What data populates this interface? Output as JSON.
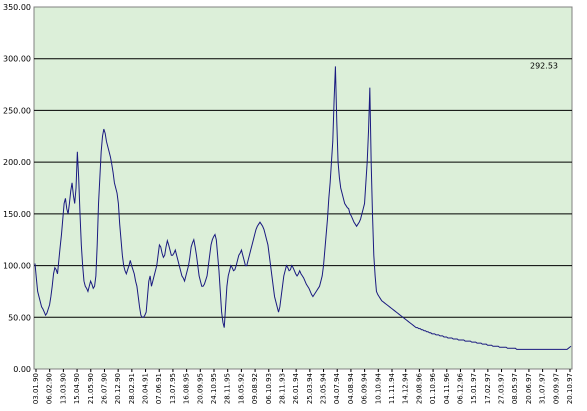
{
  "chart_data": {
    "type": "line",
    "title": "",
    "xlabel": "",
    "ylabel": "",
    "ylim": [
      0,
      350
    ],
    "yticks": [
      "0.00",
      "50.00",
      "100.00",
      "150.00",
      "200.00",
      "250.00",
      "300.00",
      "350.00"
    ],
    "grid": true,
    "legend": "none",
    "colors": {
      "plot_background": "#dcefd9",
      "line": "#1a1a80",
      "grid": "#000000"
    },
    "x_tick_labels": [
      "03.01.90",
      "06.02.90",
      "13.03.90",
      "15.04.90",
      "21.05.90",
      "26.07.90",
      "20.12.90",
      "28.02.91",
      "20.04.91",
      "07.06.91",
      "13.07.95",
      "16.08.95",
      "20.09.95",
      "24.10.95",
      "28.11.95",
      "18.05.92",
      "09.08.92",
      "06.10.93",
      "28.11.93",
      "26.01.94",
      "25.03.94",
      "23.05.94",
      "04.07.94",
      "04.08.94",
      "06.09.94",
      "10.10.94",
      "11.11.94",
      "14.12.94",
      "29.08.96",
      "01.10.96",
      "04.11.96",
      "06.12.96",
      "15.01.97",
      "17.02.97",
      "27.03.97",
      "08.05.97",
      "20.06.97",
      "31.07.97",
      "09.09.97",
      "20.10.97"
    ],
    "annotation": {
      "text": "292.53",
      "value": 292.53,
      "index": 371
    },
    "series": [
      {
        "values": [
          102,
          88,
          75,
          70,
          65,
          60,
          58,
          55,
          52,
          54,
          58,
          62,
          70,
          80,
          92,
          98,
          96,
          92,
          105,
          118,
          130,
          145,
          160,
          165,
          155,
          150,
          160,
          172,
          180,
          168,
          160,
          175,
          210,
          185,
          150,
          120,
          100,
          85,
          80,
          78,
          75,
          80,
          85,
          82,
          78,
          80,
          90,
          120,
          160,
          185,
          210,
          225,
          232,
          228,
          220,
          215,
          210,
          205,
          198,
          190,
          180,
          175,
          170,
          160,
          140,
          125,
          110,
          100,
          95,
          92,
          96,
          100,
          105,
          100,
          96,
          92,
          85,
          80,
          70,
          60,
          52,
          50,
          50,
          52,
          55,
          70,
          85,
          90,
          80,
          85,
          90,
          95,
          100,
          110,
          120,
          118,
          112,
          108,
          110,
          118,
          124,
          120,
          115,
          110,
          110,
          112,
          115,
          110,
          105,
          100,
          95,
          90,
          88,
          85,
          90,
          95,
          100,
          108,
          118,
          122,
          125,
          118,
          110,
          100,
          90,
          85,
          80,
          80,
          82,
          86,
          90,
          100,
          110,
          120,
          125,
          128,
          130,
          125,
          110,
          95,
          75,
          55,
          45,
          40,
          60,
          80,
          90,
          95,
          100,
          98,
          95,
          96,
          100,
          105,
          110,
          112,
          115,
          110,
          105,
          100,
          100,
          105,
          110,
          115,
          120,
          125,
          130,
          135,
          138,
          140,
          142,
          140,
          138,
          135,
          130,
          125,
          120,
          110,
          100,
          90,
          80,
          70,
          65,
          60,
          55,
          60,
          70,
          80,
          90,
          95,
          100,
          98,
          95,
          96,
          100,
          98,
          95,
          92,
          90,
          92,
          95,
          92,
          90,
          88,
          85,
          82,
          80,
          78,
          75,
          72,
          70,
          72,
          74,
          76,
          78,
          80,
          85,
          90,
          100,
          115,
          130,
          145,
          165,
          180,
          200,
          220,
          260,
          292.53,
          240,
          200,
          185,
          175,
          170,
          165,
          160,
          158,
          156,
          155,
          150,
          148,
          145,
          142,
          140,
          138,
          140,
          142,
          145,
          150,
          155,
          160,
          180,
          200,
          230,
          272,
          200,
          150,
          110,
          90,
          75,
          72,
          70,
          68,
          66,
          65,
          64,
          63,
          62,
          61,
          60,
          59,
          58,
          57,
          56,
          55,
          54,
          53,
          52,
          51,
          50,
          49,
          48,
          47,
          46,
          45,
          44,
          43,
          42,
          41,
          40,
          40,
          39,
          39,
          38,
          38,
          37,
          37,
          36,
          36,
          35,
          35,
          34,
          34,
          34,
          33,
          33,
          33,
          32,
          32,
          32,
          31,
          31,
          31,
          30,
          30,
          30,
          30,
          29,
          29,
          29,
          29,
          28,
          28,
          28,
          28,
          28,
          27,
          27,
          27,
          27,
          27,
          26,
          26,
          26,
          26,
          25,
          25,
          25,
          25,
          24,
          24,
          24,
          24,
          23,
          23,
          23,
          23,
          22,
          22,
          22,
          22,
          22,
          21,
          21,
          21,
          21,
          21,
          21,
          20,
          20,
          20,
          20,
          20,
          20,
          20,
          19,
          19,
          19,
          19,
          19,
          19,
          19,
          19,
          19,
          19,
          19,
          19,
          19,
          19,
          19,
          19,
          19,
          19,
          19,
          19,
          19,
          19,
          19,
          19,
          19,
          19,
          19,
          19,
          19,
          19,
          19,
          19,
          19,
          19,
          19,
          19,
          19,
          19,
          19,
          20,
          21,
          22
        ]
      }
    ]
  }
}
